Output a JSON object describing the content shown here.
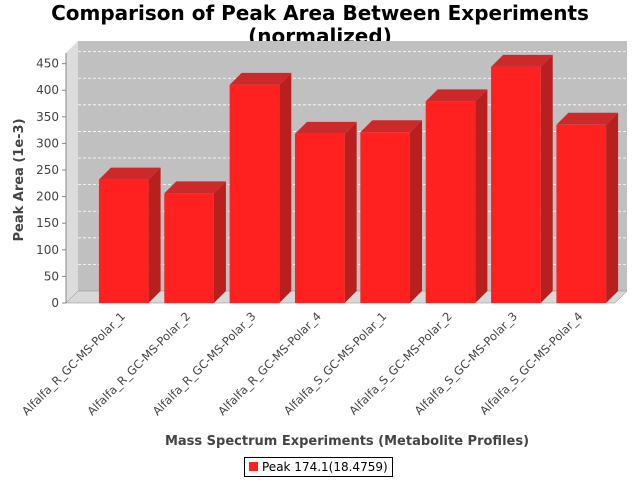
{
  "chart_data": {
    "type": "bar",
    "title_line1": "Comparison of Peak Area Between Experiments",
    "title_line2": "(normalized)",
    "xlabel": "Mass Spectrum Experiments (Metabolite Profiles)",
    "ylabel": "Peak Area (1e-3)",
    "ylim": [
      0,
      470
    ],
    "yticks": [
      0,
      50,
      100,
      150,
      200,
      250,
      300,
      350,
      400,
      450
    ],
    "grid": true,
    "legend_position": "bottom-center",
    "categories": [
      "Alfalfa_R_GC-MS-Polar_1",
      "Alfalfa_R_GC-MS-Polar_2",
      "Alfalfa_R_GC-MS-Polar_3",
      "Alfalfa_R_GC-MS-Polar_4",
      "Alfalfa_S_GC-MS-Polar_1",
      "Alfalfa_S_GC-MS-Polar_2",
      "Alfalfa_S_GC-MS-Polar_3",
      "Alfalfa_S_GC-MS-Polar_4"
    ],
    "series": [
      {
        "name": "Peak 174.1(18.4759)",
        "color": "#ff2020",
        "values": [
          232,
          206,
          410,
          318,
          321,
          379,
          444,
          335
        ]
      }
    ]
  }
}
